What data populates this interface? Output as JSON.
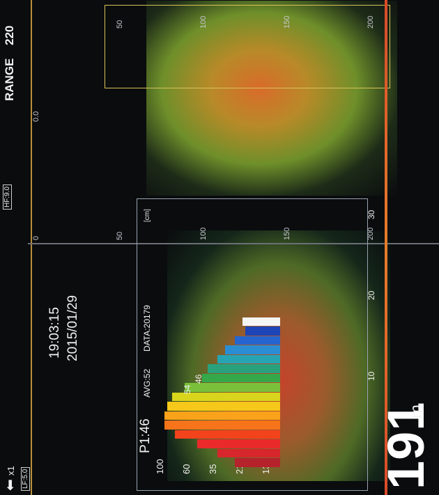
{
  "header": {
    "zoom_label": "x1",
    "lf_label": "LF:5.0",
    "hf_label": "HF:9.0",
    "range_label": "RANGE",
    "range_value": "220"
  },
  "status": {
    "time": "19:03:15",
    "date": "2015/01/29",
    "depth_value": "191",
    "depth_unit": "m"
  },
  "histogram": {
    "p_label": "P1:46",
    "avg_label": "AVG:52",
    "data_label": "DATA:20179",
    "peak_labels": [
      "54",
      "46"
    ],
    "scale_labels": [
      "100",
      "60",
      "35",
      "21",
      "13"
    ],
    "unit_label": "[cm]",
    "x_ticks": [
      "10",
      "20",
      "30"
    ],
    "bars": [
      {
        "value": 0.36,
        "color": "#b5222b"
      },
      {
        "value": 0.5,
        "color": "#d7262c"
      },
      {
        "value": 0.66,
        "color": "#ea2a2a"
      },
      {
        "value": 0.84,
        "color": "#f2431d"
      },
      {
        "value": 0.92,
        "color": "#f7741a"
      },
      {
        "value": 0.92,
        "color": "#f9a21a"
      },
      {
        "value": 0.9,
        "color": "#f5c81a"
      },
      {
        "value": 0.86,
        "color": "#d9d51c"
      },
      {
        "value": 0.76,
        "color": "#7ac03a"
      },
      {
        "value": 0.62,
        "color": "#35a84a"
      },
      {
        "value": 0.58,
        "color": "#2aa17d"
      },
      {
        "value": 0.5,
        "color": "#27a4b4"
      },
      {
        "value": 0.44,
        "color": "#2b8ed2"
      },
      {
        "value": 0.36,
        "color": "#2665cf"
      },
      {
        "value": 0.28,
        "color": "#1d45b8"
      },
      {
        "value": 0.3,
        "color": "#f4f4f4"
      }
    ]
  },
  "lower_scale": [
    "0",
    "50",
    "100",
    "150",
    "200"
  ],
  "upper_scale": [
    "0.0",
    "50",
    "100",
    "150",
    "200"
  ]
}
